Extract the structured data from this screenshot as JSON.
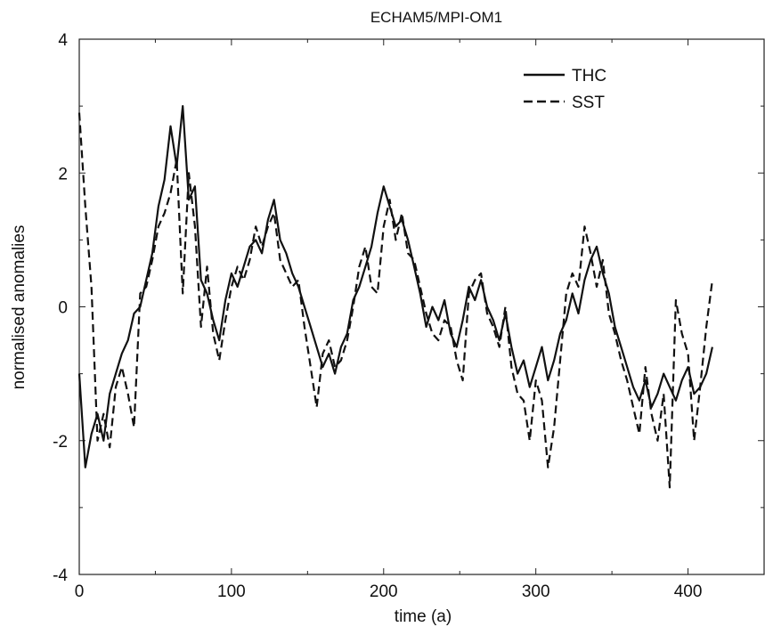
{
  "chart_data": {
    "type": "line",
    "title": "ECHAM5/MPI-OM1",
    "xlabel": "time (a)",
    "ylabel": "normalised anomalies",
    "xlim": [
      0,
      450
    ],
    "ylim": [
      -4,
      4
    ],
    "xticks": [
      0,
      100,
      200,
      300,
      400
    ],
    "yticks": [
      -4,
      -2,
      0,
      2,
      4
    ],
    "grid": false,
    "legend_position": "top-right",
    "colors": {
      "line": "#111111",
      "axis": "#222222"
    },
    "series": [
      {
        "name": "THC",
        "style": "solid",
        "x": [
          0,
          4,
          8,
          12,
          16,
          20,
          24,
          28,
          32,
          36,
          40,
          44,
          48,
          52,
          56,
          60,
          64,
          68,
          72,
          76,
          80,
          84,
          88,
          92,
          96,
          100,
          104,
          108,
          112,
          116,
          120,
          124,
          128,
          132,
          136,
          140,
          144,
          148,
          152,
          156,
          160,
          164,
          168,
          172,
          176,
          180,
          184,
          188,
          192,
          196,
          200,
          204,
          208,
          212,
          216,
          220,
          224,
          228,
          232,
          236,
          240,
          244,
          248,
          252,
          256,
          260,
          264,
          268,
          272,
          276,
          280,
          284,
          288,
          292,
          296,
          300,
          304,
          308,
          312,
          316,
          320,
          324,
          328,
          332,
          336,
          340,
          344,
          348,
          352,
          356,
          360,
          364,
          368,
          372,
          376,
          380,
          384,
          388,
          392,
          396,
          400,
          404,
          408,
          412,
          416
        ],
        "y": [
          -1.0,
          -2.4,
          -1.9,
          -1.6,
          -2.0,
          -1.3,
          -1.0,
          -0.7,
          -0.5,
          -0.1,
          0.0,
          0.4,
          0.8,
          1.5,
          1.9,
          2.7,
          2.1,
          3.0,
          1.6,
          1.8,
          0.4,
          0.2,
          -0.2,
          -0.5,
          0.1,
          0.5,
          0.3,
          0.6,
          0.9,
          1.0,
          0.8,
          1.3,
          1.6,
          1.0,
          0.8,
          0.5,
          0.3,
          0.0,
          -0.3,
          -0.6,
          -0.9,
          -0.7,
          -1.0,
          -0.6,
          -0.4,
          0.1,
          0.3,
          0.6,
          0.9,
          1.4,
          1.8,
          1.5,
          1.2,
          1.3,
          1.0,
          0.6,
          0.2,
          -0.3,
          0.0,
          -0.2,
          0.1,
          -0.4,
          -0.6,
          -0.2,
          0.3,
          0.1,
          0.4,
          0.0,
          -0.2,
          -0.5,
          -0.1,
          -0.6,
          -1.0,
          -0.8,
          -1.2,
          -0.9,
          -0.6,
          -1.1,
          -0.8,
          -0.4,
          -0.2,
          0.2,
          -0.1,
          0.4,
          0.7,
          0.9,
          0.5,
          0.2,
          -0.3,
          -0.6,
          -0.9,
          -1.2,
          -1.4,
          -1.1,
          -1.5,
          -1.3,
          -1.0,
          -1.2,
          -1.4,
          -1.1,
          -0.9,
          -1.3,
          -1.2,
          -1.0,
          -0.6
        ]
      },
      {
        "name": "SST",
        "style": "dashed",
        "x": [
          0,
          4,
          8,
          12,
          16,
          20,
          24,
          28,
          32,
          36,
          40,
          44,
          48,
          52,
          56,
          60,
          64,
          68,
          72,
          76,
          80,
          84,
          88,
          92,
          96,
          100,
          104,
          108,
          112,
          116,
          120,
          124,
          128,
          132,
          136,
          140,
          144,
          148,
          152,
          156,
          160,
          164,
          168,
          172,
          176,
          180,
          184,
          188,
          192,
          196,
          200,
          204,
          208,
          212,
          216,
          220,
          224,
          228,
          232,
          236,
          240,
          244,
          248,
          252,
          256,
          260,
          264,
          268,
          272,
          276,
          280,
          284,
          288,
          292,
          296,
          300,
          304,
          308,
          312,
          316,
          320,
          324,
          328,
          332,
          336,
          340,
          344,
          348,
          352,
          356,
          360,
          364,
          368,
          372,
          376,
          380,
          384,
          388,
          392,
          396,
          400,
          404,
          408,
          412,
          416
        ],
        "y": [
          2.9,
          1.5,
          0.3,
          -2.0,
          -1.6,
          -2.1,
          -1.2,
          -0.9,
          -1.3,
          -1.8,
          0.2,
          0.3,
          0.7,
          1.2,
          1.4,
          1.7,
          2.2,
          0.2,
          2.0,
          1.2,
          -0.3,
          0.6,
          -0.4,
          -0.8,
          -0.2,
          0.3,
          0.6,
          0.4,
          0.7,
          1.2,
          0.9,
          1.2,
          1.4,
          0.7,
          0.5,
          0.3,
          0.4,
          -0.3,
          -0.9,
          -1.5,
          -0.7,
          -0.5,
          -0.9,
          -0.8,
          -0.5,
          0.0,
          0.6,
          0.9,
          0.3,
          0.2,
          1.2,
          1.6,
          1.0,
          1.4,
          0.8,
          0.7,
          0.3,
          -0.1,
          -0.4,
          -0.5,
          -0.2,
          -0.3,
          -0.8,
          -1.1,
          0.2,
          0.4,
          0.5,
          -0.1,
          -0.3,
          -0.6,
          0.0,
          -0.9,
          -1.3,
          -1.4,
          -2.0,
          -1.1,
          -1.4,
          -2.4,
          -1.8,
          -0.8,
          0.2,
          0.5,
          0.3,
          1.2,
          0.8,
          0.3,
          0.7,
          -0.1,
          -0.4,
          -0.8,
          -1.1,
          -1.5,
          -1.9,
          -0.9,
          -1.6,
          -2.0,
          -1.3,
          -2.7,
          0.1,
          -0.4,
          -0.7,
          -2.0,
          -1.2,
          -0.3,
          0.4
        ]
      }
    ]
  }
}
